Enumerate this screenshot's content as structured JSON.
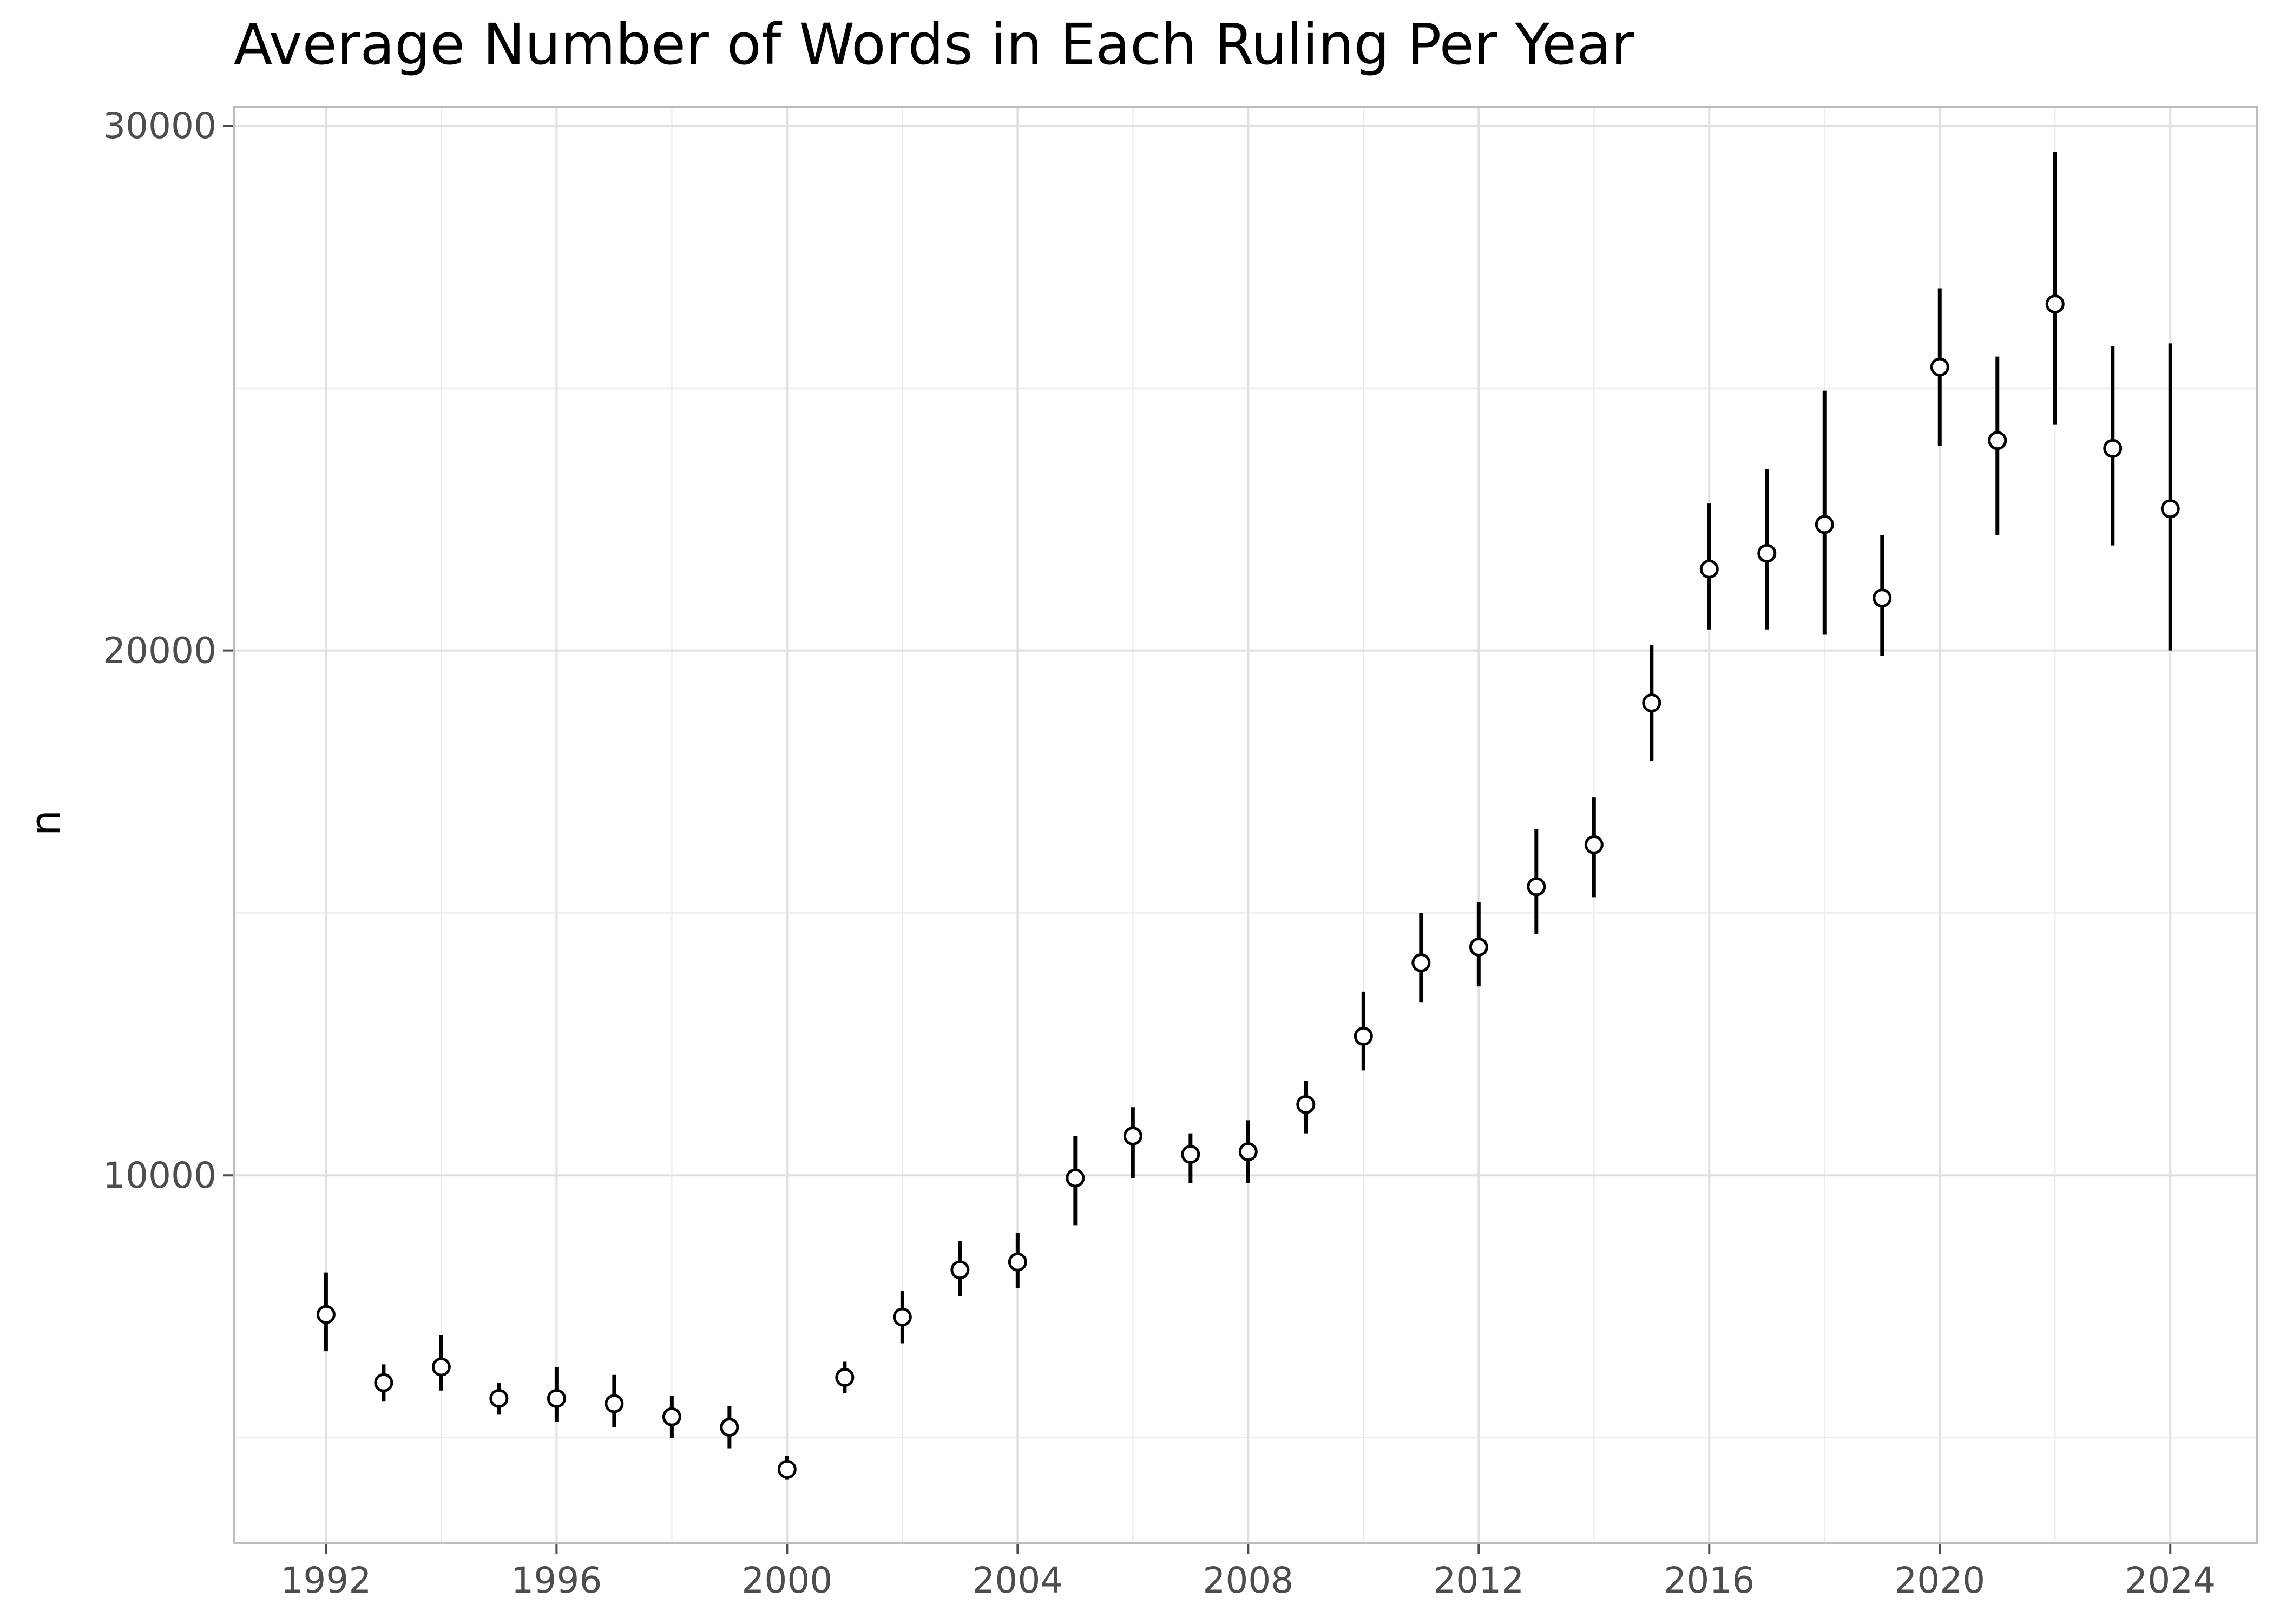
{
  "chart_data": {
    "type": "scatter",
    "title": "Average Number of Words in Each Ruling Per Year",
    "xlabel": "",
    "ylabel": "n",
    "xlim": [
      1990.4,
      2025.5
    ],
    "ylim": [
      3000,
      30350
    ],
    "x_ticks": [
      1992,
      1996,
      2000,
      2004,
      2008,
      2012,
      2016,
      2020,
      2024
    ],
    "x_tick_labels": [
      "1992",
      "1996",
      "2000",
      "2004",
      "2008",
      "2012",
      "2016",
      "2020",
      "2024"
    ],
    "y_ticks": [
      10000,
      20000,
      30000
    ],
    "y_tick_labels": [
      "10000",
      "20000",
      "30000"
    ],
    "y_minor_ticks": [
      5000,
      15000,
      25000
    ],
    "grid": true,
    "legend": "none",
    "series": [
      {
        "points": [
          {
            "x": 1992,
            "y": 7350,
            "ymin": 6650,
            "ymax": 8150
          },
          {
            "x": 1993,
            "y": 6050,
            "ymin": 5700,
            "ymax": 6400
          },
          {
            "x": 1994,
            "y": 6350,
            "ymin": 5900,
            "ymax": 6950
          },
          {
            "x": 1995,
            "y": 5750,
            "ymin": 5450,
            "ymax": 6050
          },
          {
            "x": 1996,
            "y": 5750,
            "ymin": 5300,
            "ymax": 6350
          },
          {
            "x": 1997,
            "y": 5650,
            "ymin": 5200,
            "ymax": 6200
          },
          {
            "x": 1998,
            "y": 5400,
            "ymin": 5000,
            "ymax": 5800
          },
          {
            "x": 1999,
            "y": 5200,
            "ymin": 4800,
            "ymax": 5600
          },
          {
            "x": 2000,
            "y": 4400,
            "ymin": 4200,
            "ymax": 4650
          },
          {
            "x": 2001,
            "y": 6150,
            "ymin": 5850,
            "ymax": 6450
          },
          {
            "x": 2002,
            "y": 7300,
            "ymin": 6800,
            "ymax": 7800
          },
          {
            "x": 2003,
            "y": 8200,
            "ymin": 7700,
            "ymax": 8750
          },
          {
            "x": 2004,
            "y": 8350,
            "ymin": 7850,
            "ymax": 8900
          },
          {
            "x": 2005,
            "y": 9950,
            "ymin": 9050,
            "ymax": 10750
          },
          {
            "x": 2006,
            "y": 10750,
            "ymin": 9950,
            "ymax": 11300
          },
          {
            "x": 2007,
            "y": 10400,
            "ymin": 9850,
            "ymax": 10800
          },
          {
            "x": 2008,
            "y": 10450,
            "ymin": 9850,
            "ymax": 11050
          },
          {
            "x": 2009,
            "y": 11350,
            "ymin": 10800,
            "ymax": 11800
          },
          {
            "x": 2010,
            "y": 12650,
            "ymin": 12000,
            "ymax": 13500
          },
          {
            "x": 2011,
            "y": 14050,
            "ymin": 13300,
            "ymax": 15000
          },
          {
            "x": 2012,
            "y": 14350,
            "ymin": 13600,
            "ymax": 15200
          },
          {
            "x": 2013,
            "y": 15500,
            "ymin": 14600,
            "ymax": 16600
          },
          {
            "x": 2014,
            "y": 16300,
            "ymin": 15300,
            "ymax": 17200
          },
          {
            "x": 2015,
            "y": 19000,
            "ymin": 17900,
            "ymax": 20100
          },
          {
            "x": 2016,
            "y": 21550,
            "ymin": 20400,
            "ymax": 22800
          },
          {
            "x": 2017,
            "y": 21850,
            "ymin": 20400,
            "ymax": 23450
          },
          {
            "x": 2018,
            "y": 22400,
            "ymin": 20300,
            "ymax": 24950
          },
          {
            "x": 2019,
            "y": 21000,
            "ymin": 19900,
            "ymax": 22200
          },
          {
            "x": 2020,
            "y": 25400,
            "ymin": 23900,
            "ymax": 26900
          },
          {
            "x": 2021,
            "y": 24000,
            "ymin": 22200,
            "ymax": 25600
          },
          {
            "x": 2022,
            "y": 26600,
            "ymin": 24300,
            "ymax": 29500
          },
          {
            "x": 2023,
            "y": 23850,
            "ymin": 22000,
            "ymax": 25800
          },
          {
            "x": 2024,
            "y": 22700,
            "ymin": 20000,
            "ymax": 25850
          }
        ]
      }
    ]
  }
}
